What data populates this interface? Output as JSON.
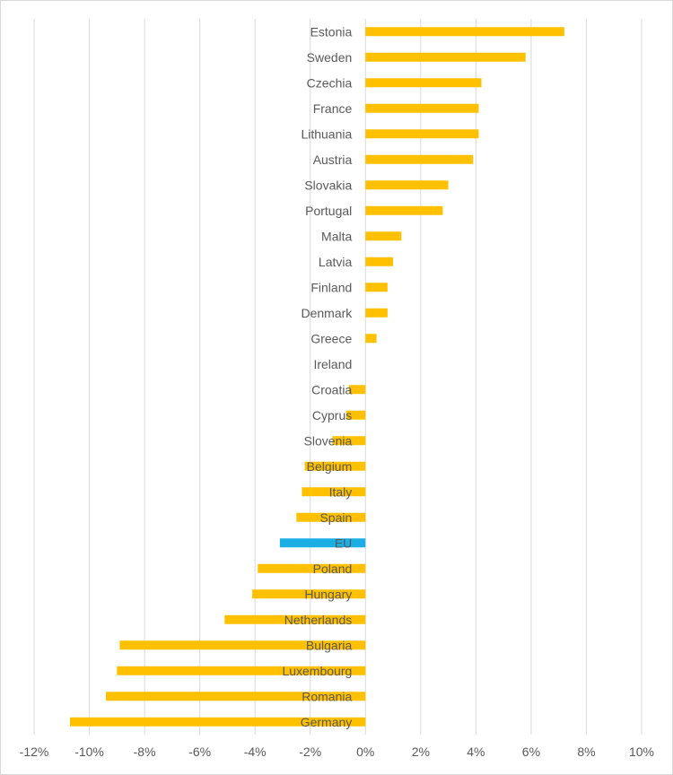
{
  "chart_data": {
    "type": "bar",
    "orientation": "horizontal",
    "title": "",
    "xlabel": "",
    "ylabel": "",
    "xlim": [
      -12,
      10
    ],
    "x_ticks": [
      -12,
      -10,
      -8,
      -6,
      -4,
      -2,
      0,
      2,
      4,
      6,
      8,
      10
    ],
    "x_tick_labels": [
      "-12%",
      "-10%",
      "-8%",
      "-6%",
      "-4%",
      "-2%",
      "0%",
      "2%",
      "4%",
      "6%",
      "8%",
      "10%"
    ],
    "grid": "vertical",
    "categories": [
      "Estonia",
      "Sweden",
      "Czechia",
      "France",
      "Lithuania",
      "Austria",
      "Slovakia",
      "Portugal",
      "Malta",
      "Latvia",
      "Finland",
      "Denmark",
      "Greece",
      "Ireland",
      "Croatia",
      "Cyprus",
      "Slovenia",
      "Belgium",
      "Italy",
      "Spain",
      "EU",
      "Poland",
      "Hungary",
      "Netherlands",
      "Bulgaria",
      "Luxembourg",
      "Romania",
      "Germany"
    ],
    "values": [
      7.2,
      5.8,
      4.2,
      4.1,
      4.1,
      3.9,
      3.0,
      2.8,
      1.3,
      1.0,
      0.8,
      0.8,
      0.4,
      0.0,
      -0.6,
      -0.7,
      -1.2,
      -2.2,
      -2.3,
      -2.5,
      -3.1,
      -3.9,
      -4.1,
      -5.1,
      -8.9,
      -9.0,
      -9.4,
      -10.7
    ],
    "colors": {
      "default": "#FFC000",
      "highlight": "#1AAEE5",
      "highlight_category": "EU",
      "grid": "#D9D9D9",
      "label": "#595959"
    }
  }
}
